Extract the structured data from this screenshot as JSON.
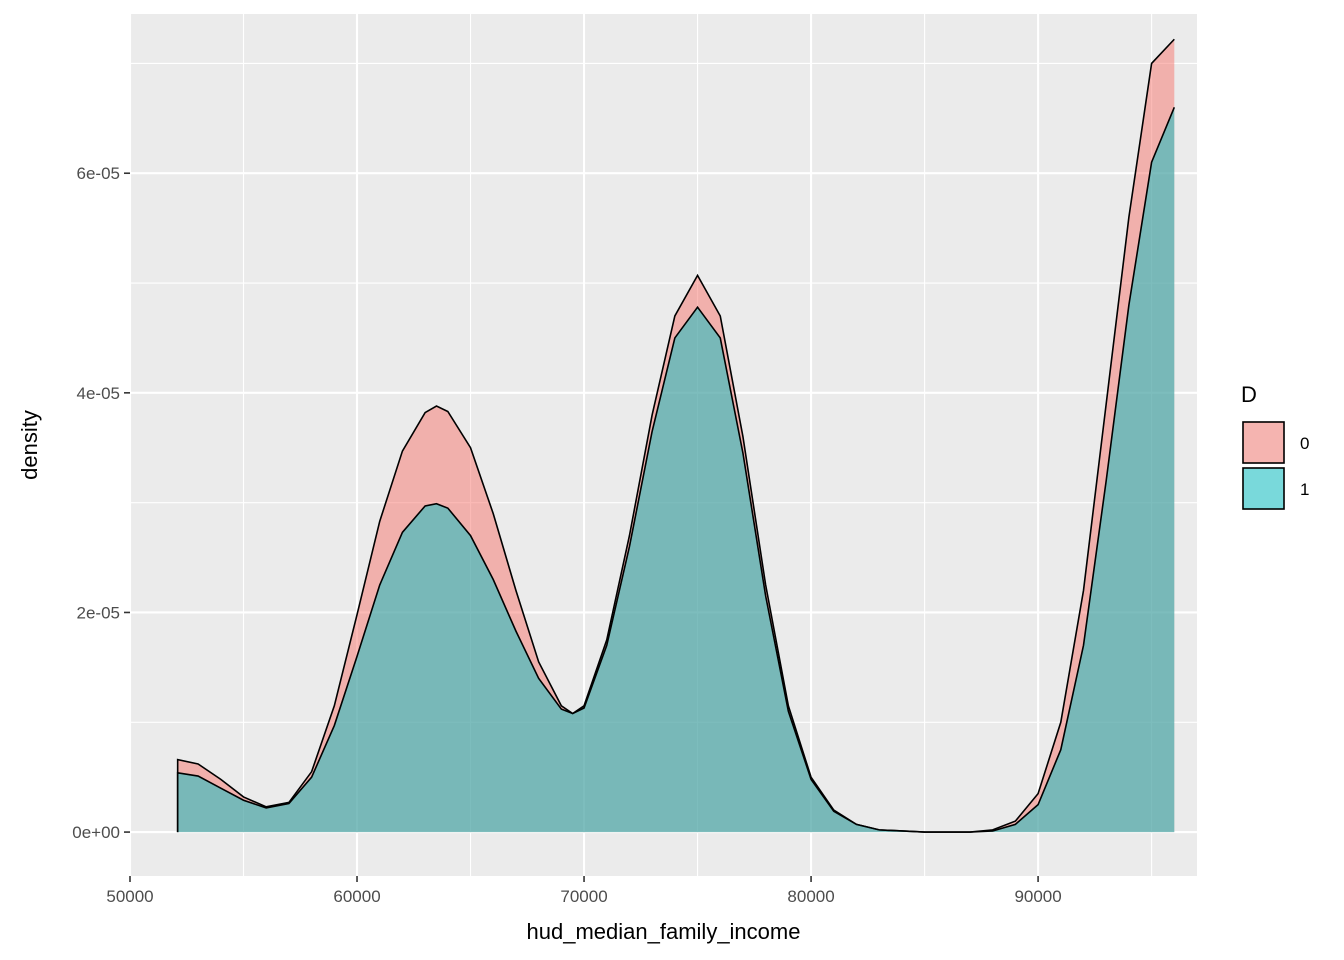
{
  "chart_data": {
    "type": "area",
    "subtype": "density",
    "title": "",
    "xlabel": "hud_median_family_income",
    "ylabel": "density",
    "xlim": [
      50000,
      97000
    ],
    "ylim": [
      -4e-06,
      7.45e-05
    ],
    "x_ticks": [
      50000,
      60000,
      70000,
      80000,
      90000
    ],
    "x_tick_labels": [
      "50000",
      "60000",
      "70000",
      "80000",
      "90000"
    ],
    "y_ticks": [
      0,
      2e-05,
      4e-05,
      6e-05
    ],
    "y_tick_labels": [
      "0e+00",
      "2e-05",
      "4e-05",
      "6e-05"
    ],
    "grid": true,
    "legend": {
      "title": "D",
      "position": "right"
    },
    "series": [
      {
        "name": "0",
        "color": "#F8766D",
        "points": [
          [
            52100,
            6.6e-06
          ],
          [
            53000,
            6.2e-06
          ],
          [
            54000,
            4.8e-06
          ],
          [
            55000,
            3.2e-06
          ],
          [
            56000,
            2.3e-06
          ],
          [
            57000,
            2.7e-06
          ],
          [
            58000,
            5.5e-06
          ],
          [
            59000,
            1.15e-05
          ],
          [
            60000,
            1.98e-05
          ],
          [
            61000,
            2.83e-05
          ],
          [
            62000,
            3.47e-05
          ],
          [
            63000,
            3.82e-05
          ],
          [
            63500,
            3.88e-05
          ],
          [
            64000,
            3.83e-05
          ],
          [
            65000,
            3.5e-05
          ],
          [
            66000,
            2.9e-05
          ],
          [
            67000,
            2.2e-05
          ],
          [
            68000,
            1.55e-05
          ],
          [
            69000,
            1.15e-05
          ],
          [
            69500,
            1.08e-05
          ],
          [
            70000,
            1.15e-05
          ],
          [
            71000,
            1.75e-05
          ],
          [
            72000,
            2.7e-05
          ],
          [
            73000,
            3.8e-05
          ],
          [
            74000,
            4.7e-05
          ],
          [
            75000,
            5.07e-05
          ],
          [
            76000,
            4.7e-05
          ],
          [
            77000,
            3.6e-05
          ],
          [
            78000,
            2.25e-05
          ],
          [
            79000,
            1.15e-05
          ],
          [
            80000,
            5e-06
          ],
          [
            81000,
            2e-06
          ],
          [
            82000,
            7e-07
          ],
          [
            83000,
            2e-07
          ],
          [
            84000,
            1e-07
          ],
          [
            85000,
            0.0
          ],
          [
            86000,
            0.0
          ],
          [
            87000,
            0.0
          ],
          [
            88000,
            2e-07
          ],
          [
            89000,
            1e-06
          ],
          [
            90000,
            3.5e-06
          ],
          [
            91000,
            1e-05
          ],
          [
            92000,
            2.2e-05
          ],
          [
            93000,
            3.9e-05
          ],
          [
            94000,
            5.6e-05
          ],
          [
            95000,
            7e-05
          ],
          [
            96000,
            7.22e-05
          ]
        ]
      },
      {
        "name": "1",
        "color": "#00BFC4",
        "points": [
          [
            52100,
            5.4e-06
          ],
          [
            53000,
            5.1e-06
          ],
          [
            54000,
            4e-06
          ],
          [
            55000,
            2.9e-06
          ],
          [
            56000,
            2.2e-06
          ],
          [
            57000,
            2.6e-06
          ],
          [
            58000,
            5e-06
          ],
          [
            59000,
            9.7e-06
          ],
          [
            60000,
            1.6e-05
          ],
          [
            61000,
            2.25e-05
          ],
          [
            62000,
            2.73e-05
          ],
          [
            63000,
            2.97e-05
          ],
          [
            63500,
            2.99e-05
          ],
          [
            64000,
            2.95e-05
          ],
          [
            65000,
            2.7e-05
          ],
          [
            66000,
            2.3e-05
          ],
          [
            67000,
            1.83e-05
          ],
          [
            68000,
            1.4e-05
          ],
          [
            69000,
            1.12e-05
          ],
          [
            69500,
            1.08e-05
          ],
          [
            70000,
            1.13e-05
          ],
          [
            71000,
            1.7e-05
          ],
          [
            72000,
            2.6e-05
          ],
          [
            73000,
            3.65e-05
          ],
          [
            74000,
            4.5e-05
          ],
          [
            75000,
            4.78e-05
          ],
          [
            76000,
            4.5e-05
          ],
          [
            77000,
            3.45e-05
          ],
          [
            78000,
            2.15e-05
          ],
          [
            79000,
            1.1e-05
          ],
          [
            80000,
            4.8e-06
          ],
          [
            81000,
            1.9e-06
          ],
          [
            82000,
            7e-07
          ],
          [
            83000,
            2e-07
          ],
          [
            84000,
            1e-07
          ],
          [
            85000,
            0.0
          ],
          [
            86000,
            0.0
          ],
          [
            87000,
            0.0
          ],
          [
            88000,
            1e-07
          ],
          [
            89000,
            7e-07
          ],
          [
            90000,
            2.5e-06
          ],
          [
            91000,
            7.5e-06
          ],
          [
            92000,
            1.7e-05
          ],
          [
            93000,
            3.2e-05
          ],
          [
            94000,
            4.8e-05
          ],
          [
            95000,
            6.1e-05
          ],
          [
            96000,
            6.6e-05
          ]
        ]
      }
    ]
  }
}
